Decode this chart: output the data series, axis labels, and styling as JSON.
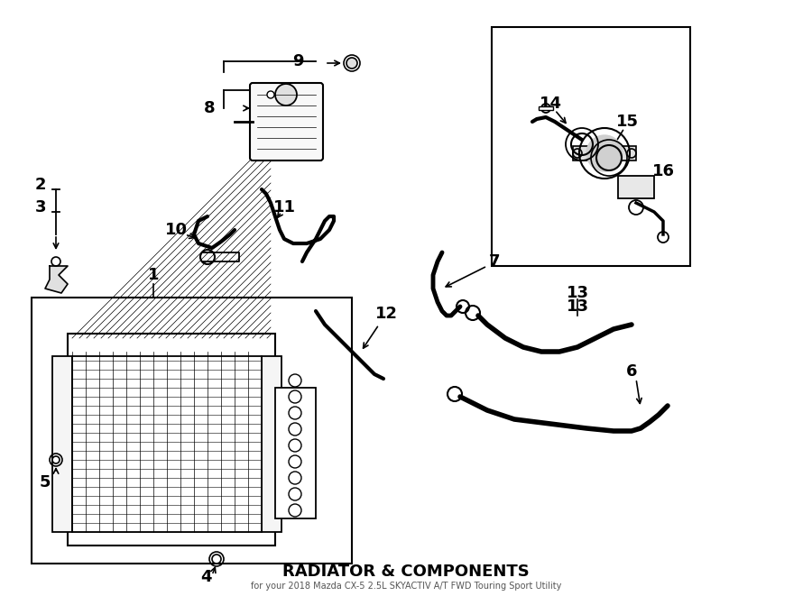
{
  "title": "RADIATOR & COMPONENTS",
  "subtitle": "for your 2018 Mazda CX-5 2.5L SKYACTIV A/T FWD Touring Sport Utility",
  "background": "#ffffff",
  "line_color": "#000000",
  "label_color": "#000000",
  "fig_width": 9.0,
  "fig_height": 6.61,
  "dpi": 100
}
